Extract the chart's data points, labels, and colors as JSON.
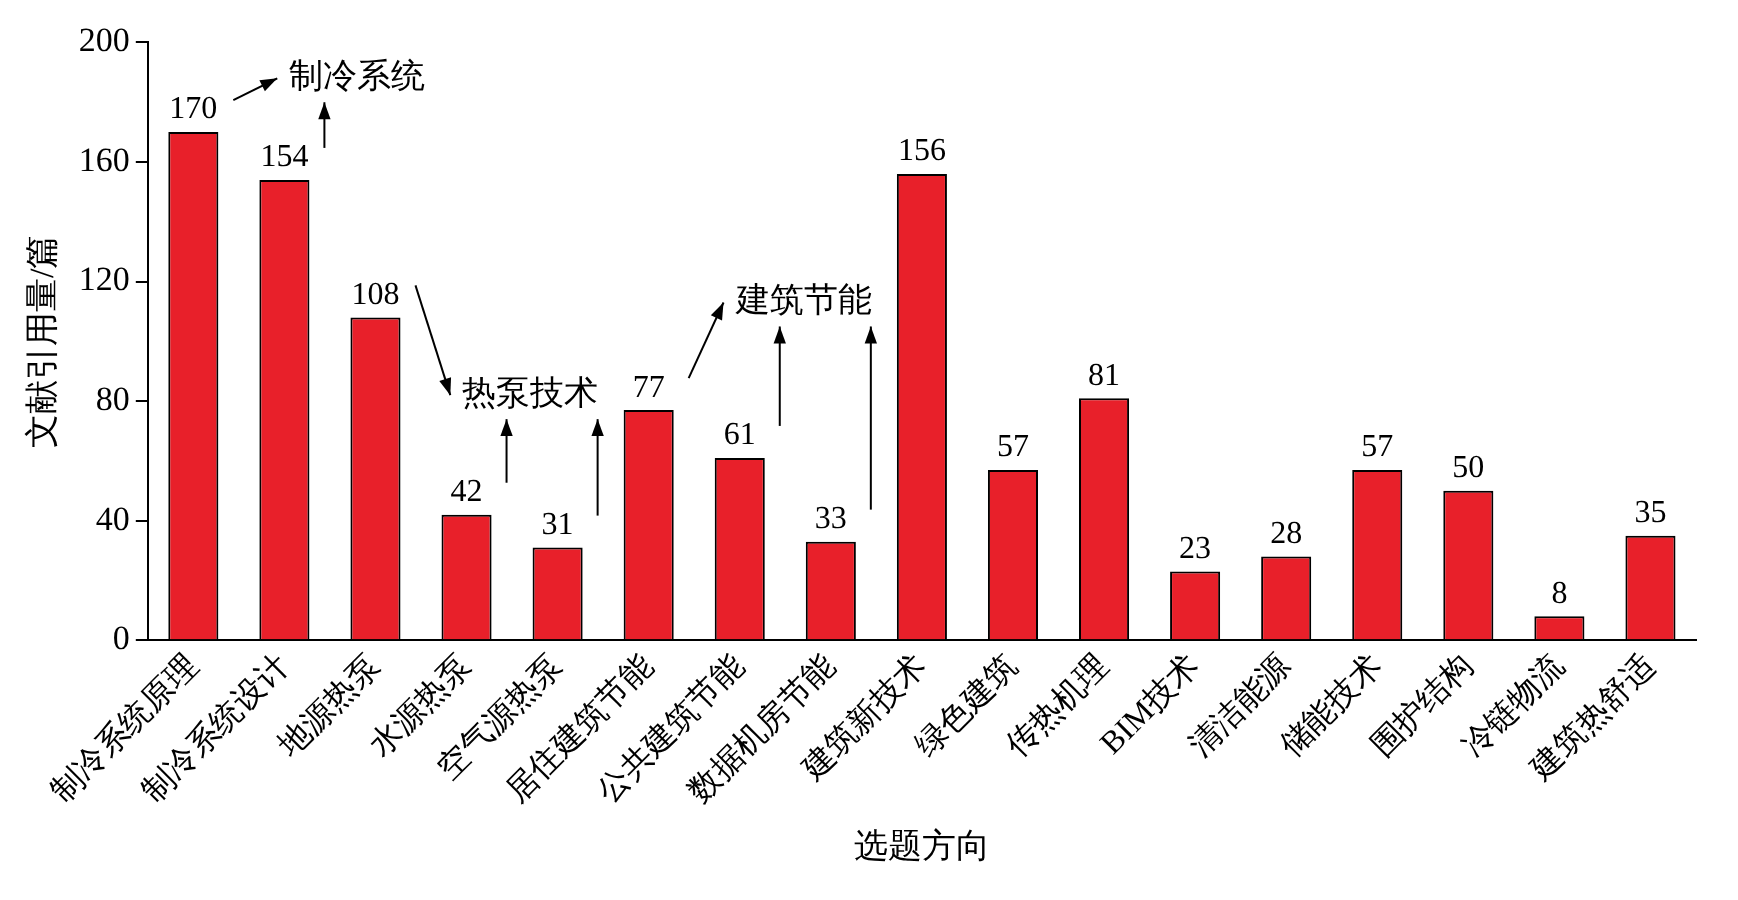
{
  "chart_data": {
    "type": "bar",
    "xlabel": "选题方向",
    "ylabel": "文献引用量/篇",
    "categories": [
      "制冷系统原理",
      "制冷系统设计",
      "地源热泵",
      "水源热泵",
      "空气源热泵",
      "居住建筑节能",
      "公共建筑节能",
      "数据机房节能",
      "建筑新技术",
      "绿色建筑",
      "传热机理",
      "BIM技术",
      "清洁能源",
      "储能技术",
      "围护结构",
      "冷链物流",
      "建筑热舒适"
    ],
    "values": [
      170,
      154,
      108,
      42,
      31,
      77,
      61,
      33,
      156,
      57,
      81,
      23,
      28,
      57,
      50,
      8,
      35
    ],
    "color": "#e8202a",
    "ylim": [
      0,
      200
    ],
    "yticks": [
      0,
      40,
      80,
      120,
      160,
      200
    ],
    "grid": false,
    "legend": false,
    "data_labels": true,
    "annotations": [
      "制冷系统",
      "热泵技术",
      "建筑节能"
    ]
  }
}
